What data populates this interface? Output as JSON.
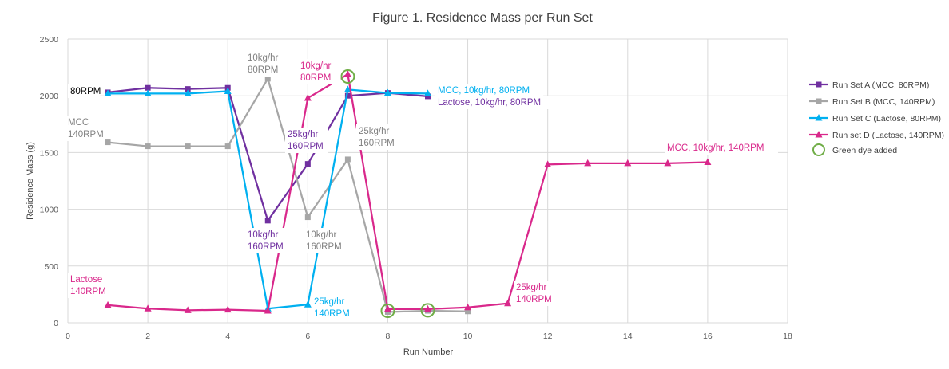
{
  "chart_data": {
    "type": "line",
    "title": "Figure 1. Residence Mass per Run Set",
    "xlabel": "Run Number",
    "ylabel": "Residence Mass (g)",
    "xlim": [
      0,
      18
    ],
    "ylim": [
      0,
      2500
    ],
    "xticks": [
      0,
      2,
      4,
      6,
      8,
      10,
      12,
      14,
      16,
      18
    ],
    "yticks": [
      0,
      500,
      1000,
      1500,
      2000,
      2500
    ],
    "grid": true,
    "legend_position": "right",
    "series": [
      {
        "name": "Run Set A (MCC, 80RPM)",
        "color": "#7030a0",
        "marker": "square",
        "points": [
          [
            1,
            2030
          ],
          [
            2,
            2070
          ],
          [
            3,
            2060
          ],
          [
            4,
            2070
          ],
          [
            5,
            900
          ],
          [
            6,
            1400
          ],
          [
            7,
            2000
          ],
          [
            8,
            2025
          ],
          [
            9,
            1995
          ]
        ]
      },
      {
        "name": "Run Set B (MCC, 140RPM)",
        "color": "#a6a6a6",
        "marker": "square",
        "points": [
          [
            1,
            1590
          ],
          [
            2,
            1555
          ],
          [
            3,
            1555
          ],
          [
            4,
            1555
          ],
          [
            5,
            2150
          ],
          [
            6,
            930
          ],
          [
            7,
            1440
          ],
          [
            8,
            95
          ],
          [
            9,
            105
          ],
          [
            10,
            100
          ]
        ]
      },
      {
        "name": "Run Set C (Lactose, 80RPM)",
        "color": "#00b0f0",
        "marker": "triangle",
        "points": [
          [
            1,
            2020
          ],
          [
            2,
            2020
          ],
          [
            3,
            2020
          ],
          [
            4,
            2040
          ],
          [
            5,
            125
          ],
          [
            6,
            160
          ],
          [
            7,
            2055
          ],
          [
            8,
            2025
          ],
          [
            9,
            2020
          ]
        ]
      },
      {
        "name": "Run set D (Lactose, 140RPM)",
        "color": "#d9288b",
        "marker": "triangle",
        "points": [
          [
            1,
            155
          ],
          [
            2,
            125
          ],
          [
            3,
            110
          ],
          [
            4,
            115
          ],
          [
            5,
            105
          ],
          [
            6,
            1980
          ],
          [
            7,
            2190
          ],
          [
            8,
            120
          ],
          [
            9,
            120
          ],
          [
            10,
            135
          ],
          [
            11,
            170
          ],
          [
            12,
            1395
          ],
          [
            13,
            1405
          ],
          [
            14,
            1405
          ],
          [
            15,
            1405
          ],
          [
            16,
            1415
          ]
        ]
      }
    ],
    "dye_marker": {
      "name": "Green dye added",
      "color": "#70ad47",
      "points": [
        [
          7,
          2170
        ],
        [
          8,
          105
        ],
        [
          9,
          110
        ]
      ]
    },
    "annotations": [
      {
        "lines": [
          "80RPM"
        ],
        "color": "#000000"
      },
      {
        "lines": [
          "MCC",
          "140RPM"
        ],
        "color": "#808080"
      },
      {
        "lines": [
          "Lactose",
          "140RPM"
        ],
        "color": "#d9288b"
      },
      {
        "lines": [
          "10kg/hr",
          "80RPM"
        ],
        "color": "#808080"
      },
      {
        "lines": [
          "10kg/hr",
          "80RPM"
        ],
        "color": "#d9288b"
      },
      {
        "lines": [
          "25kg/hr",
          "160RPM"
        ],
        "color": "#7030a0"
      },
      {
        "lines": [
          "25kg/hr",
          "160RPM"
        ],
        "color": "#808080"
      },
      {
        "lines": [
          "10kg/hr",
          "160RPM"
        ],
        "color": "#7030a0"
      },
      {
        "lines": [
          "10kg/hr",
          "160RPM"
        ],
        "color": "#808080"
      },
      {
        "lines": [
          "25kg/hr",
          "140RPM"
        ],
        "color": "#00b0f0"
      },
      {
        "lines": [
          "MCC, 10kg/hr, 80RPM"
        ],
        "color": "#00b0f0"
      },
      {
        "lines": [
          "Lactose, 10kg/hr, 80RPM"
        ],
        "color": "#7030a0"
      },
      {
        "lines": [
          "25kg/hr",
          "140RPM"
        ],
        "color": "#d9288b"
      },
      {
        "lines": [
          "MCC, 10kg/hr, 140RPM"
        ],
        "color": "#d9288b"
      }
    ]
  }
}
